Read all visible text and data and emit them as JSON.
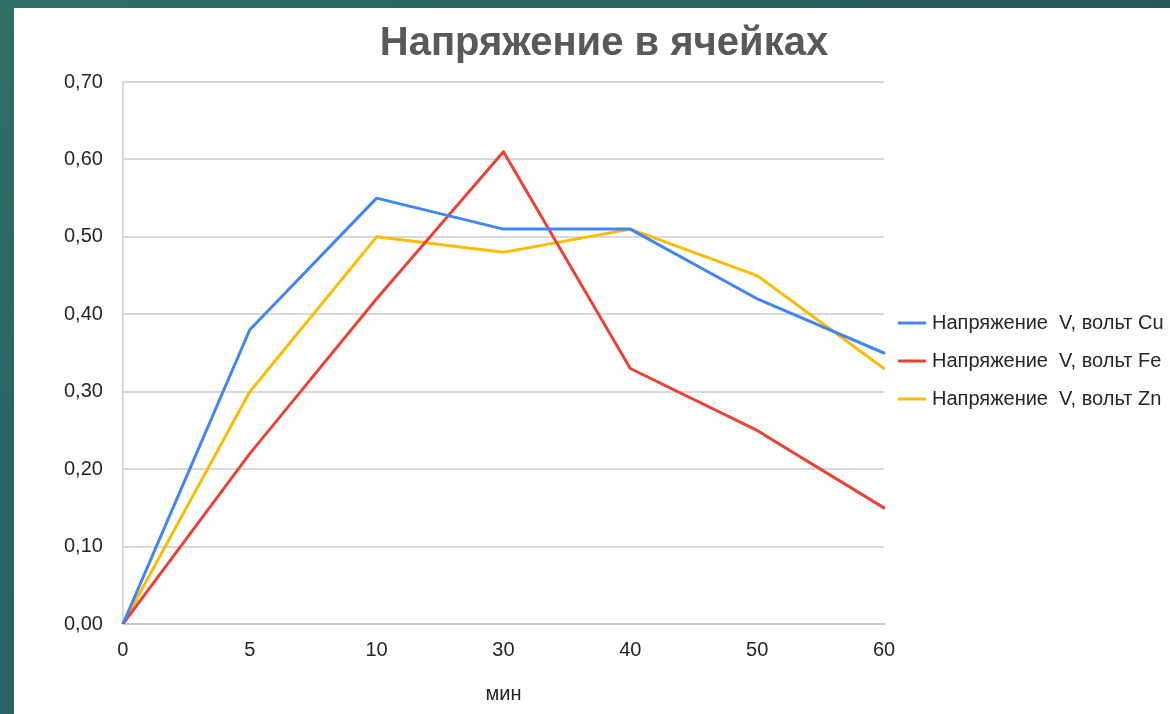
{
  "chart_data": {
    "type": "line",
    "title": "Напряжение в ячейках",
    "xlabel": "мин",
    "categories": [
      "0",
      "5",
      "10",
      "30",
      "40",
      "50",
      "60"
    ],
    "series": [
      {
        "name": "Напряжение  V, вольт Cu",
        "color": "#4285f4",
        "values": [
          0,
          0.38,
          0.55,
          0.51,
          0.51,
          0.42,
          0.35
        ]
      },
      {
        "name": "Напряжение  V, вольт Fe",
        "color": "#ea4335",
        "values": [
          0,
          0.22,
          0.42,
          0.61,
          0.33,
          0.25,
          0.15
        ]
      },
      {
        "name": "Напряжение  V, вольт Zn",
        "color": "#fbbc04",
        "values": [
          0,
          0.3,
          0.5,
          0.48,
          0.51,
          0.45,
          0.33
        ]
      }
    ],
    "ylim": [
      0,
      0.7
    ],
    "yticks": [
      {
        "value": 0,
        "label": "0,00"
      },
      {
        "value": 0.1,
        "label": "0,10"
      },
      {
        "value": 0.2,
        "label": "0,20"
      },
      {
        "value": 0.3,
        "label": "0,30"
      },
      {
        "value": 0.4,
        "label": "0,40"
      },
      {
        "value": 0.5,
        "label": "0,50"
      },
      {
        "value": 0.6,
        "label": "0,60"
      },
      {
        "value": 0.7,
        "label": "0,70"
      }
    ],
    "grid": "y",
    "legend": "right",
    "marker": "none",
    "line_style": "solid"
  }
}
